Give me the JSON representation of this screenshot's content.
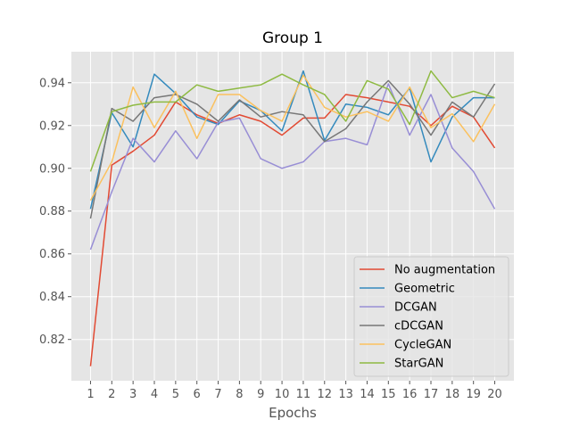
{
  "chart_data": {
    "type": "line",
    "title": "Group 1",
    "xlabel": "Epochs",
    "ylabel": "",
    "x": [
      1,
      2,
      3,
      4,
      5,
      6,
      7,
      8,
      9,
      10,
      11,
      12,
      13,
      14,
      15,
      16,
      17,
      18,
      19,
      20
    ],
    "x_ticks": [
      "1",
      "2",
      "3",
      "4",
      "5",
      "6",
      "7",
      "8",
      "9",
      "10",
      "11",
      "12",
      "13",
      "14",
      "15",
      "16",
      "17",
      "18",
      "19",
      "20"
    ],
    "y_ticks": [
      "0.82",
      "0.84",
      "0.86",
      "0.88",
      "0.90",
      "0.92",
      "0.94"
    ],
    "xlim": [
      0.1,
      20.9
    ],
    "ylim": [
      0.8007,
      0.9545
    ],
    "grid": true,
    "legend_position": "lower right",
    "series": [
      {
        "name": "No augmentation",
        "color": "#E24A33",
        "values": [
          0.8075,
          0.9015,
          0.908,
          0.9155,
          0.931,
          0.925,
          0.921,
          0.925,
          0.922,
          0.9155,
          0.9235,
          0.9235,
          0.9345,
          0.933,
          0.931,
          0.929,
          0.92,
          0.929,
          0.924,
          0.9095
        ]
      },
      {
        "name": "Geometric",
        "color": "#348ABD",
        "values": [
          0.881,
          0.926,
          0.91,
          0.944,
          0.935,
          0.924,
          0.9205,
          0.9315,
          0.927,
          0.9175,
          0.9455,
          0.913,
          0.93,
          0.9285,
          0.925,
          0.9375,
          0.903,
          0.924,
          0.933,
          0.933
        ]
      },
      {
        "name": "DCGAN",
        "color": "#988ED5",
        "values": [
          0.862,
          0.889,
          0.914,
          0.903,
          0.9175,
          0.9045,
          0.9215,
          0.9235,
          0.9045,
          0.9,
          0.903,
          0.9125,
          0.914,
          0.911,
          0.9395,
          0.9155,
          0.9345,
          0.9095,
          0.8985,
          0.881
        ]
      },
      {
        "name": "cDCGAN",
        "color": "#777777",
        "values": [
          0.8765,
          0.928,
          0.922,
          0.933,
          0.9345,
          0.93,
          0.922,
          0.932,
          0.924,
          0.9265,
          0.925,
          0.9125,
          0.9185,
          0.931,
          0.941,
          0.93,
          0.9155,
          0.931,
          0.924,
          0.9395
        ]
      },
      {
        "name": "CycleGAN",
        "color": "#FBC15E",
        "values": [
          0.885,
          0.903,
          0.938,
          0.919,
          0.936,
          0.914,
          0.9345,
          0.9345,
          0.927,
          0.922,
          0.9435,
          0.9285,
          0.924,
          0.9265,
          0.922,
          0.938,
          0.919,
          0.9255,
          0.9125,
          0.93
        ]
      },
      {
        "name": "StarGAN",
        "color": "#8EBA42",
        "values": [
          0.8985,
          0.9265,
          0.9295,
          0.931,
          0.931,
          0.939,
          0.936,
          0.9375,
          0.939,
          0.944,
          0.939,
          0.9345,
          0.922,
          0.941,
          0.937,
          0.9205,
          0.9455,
          0.933,
          0.936,
          0.933
        ]
      }
    ]
  }
}
